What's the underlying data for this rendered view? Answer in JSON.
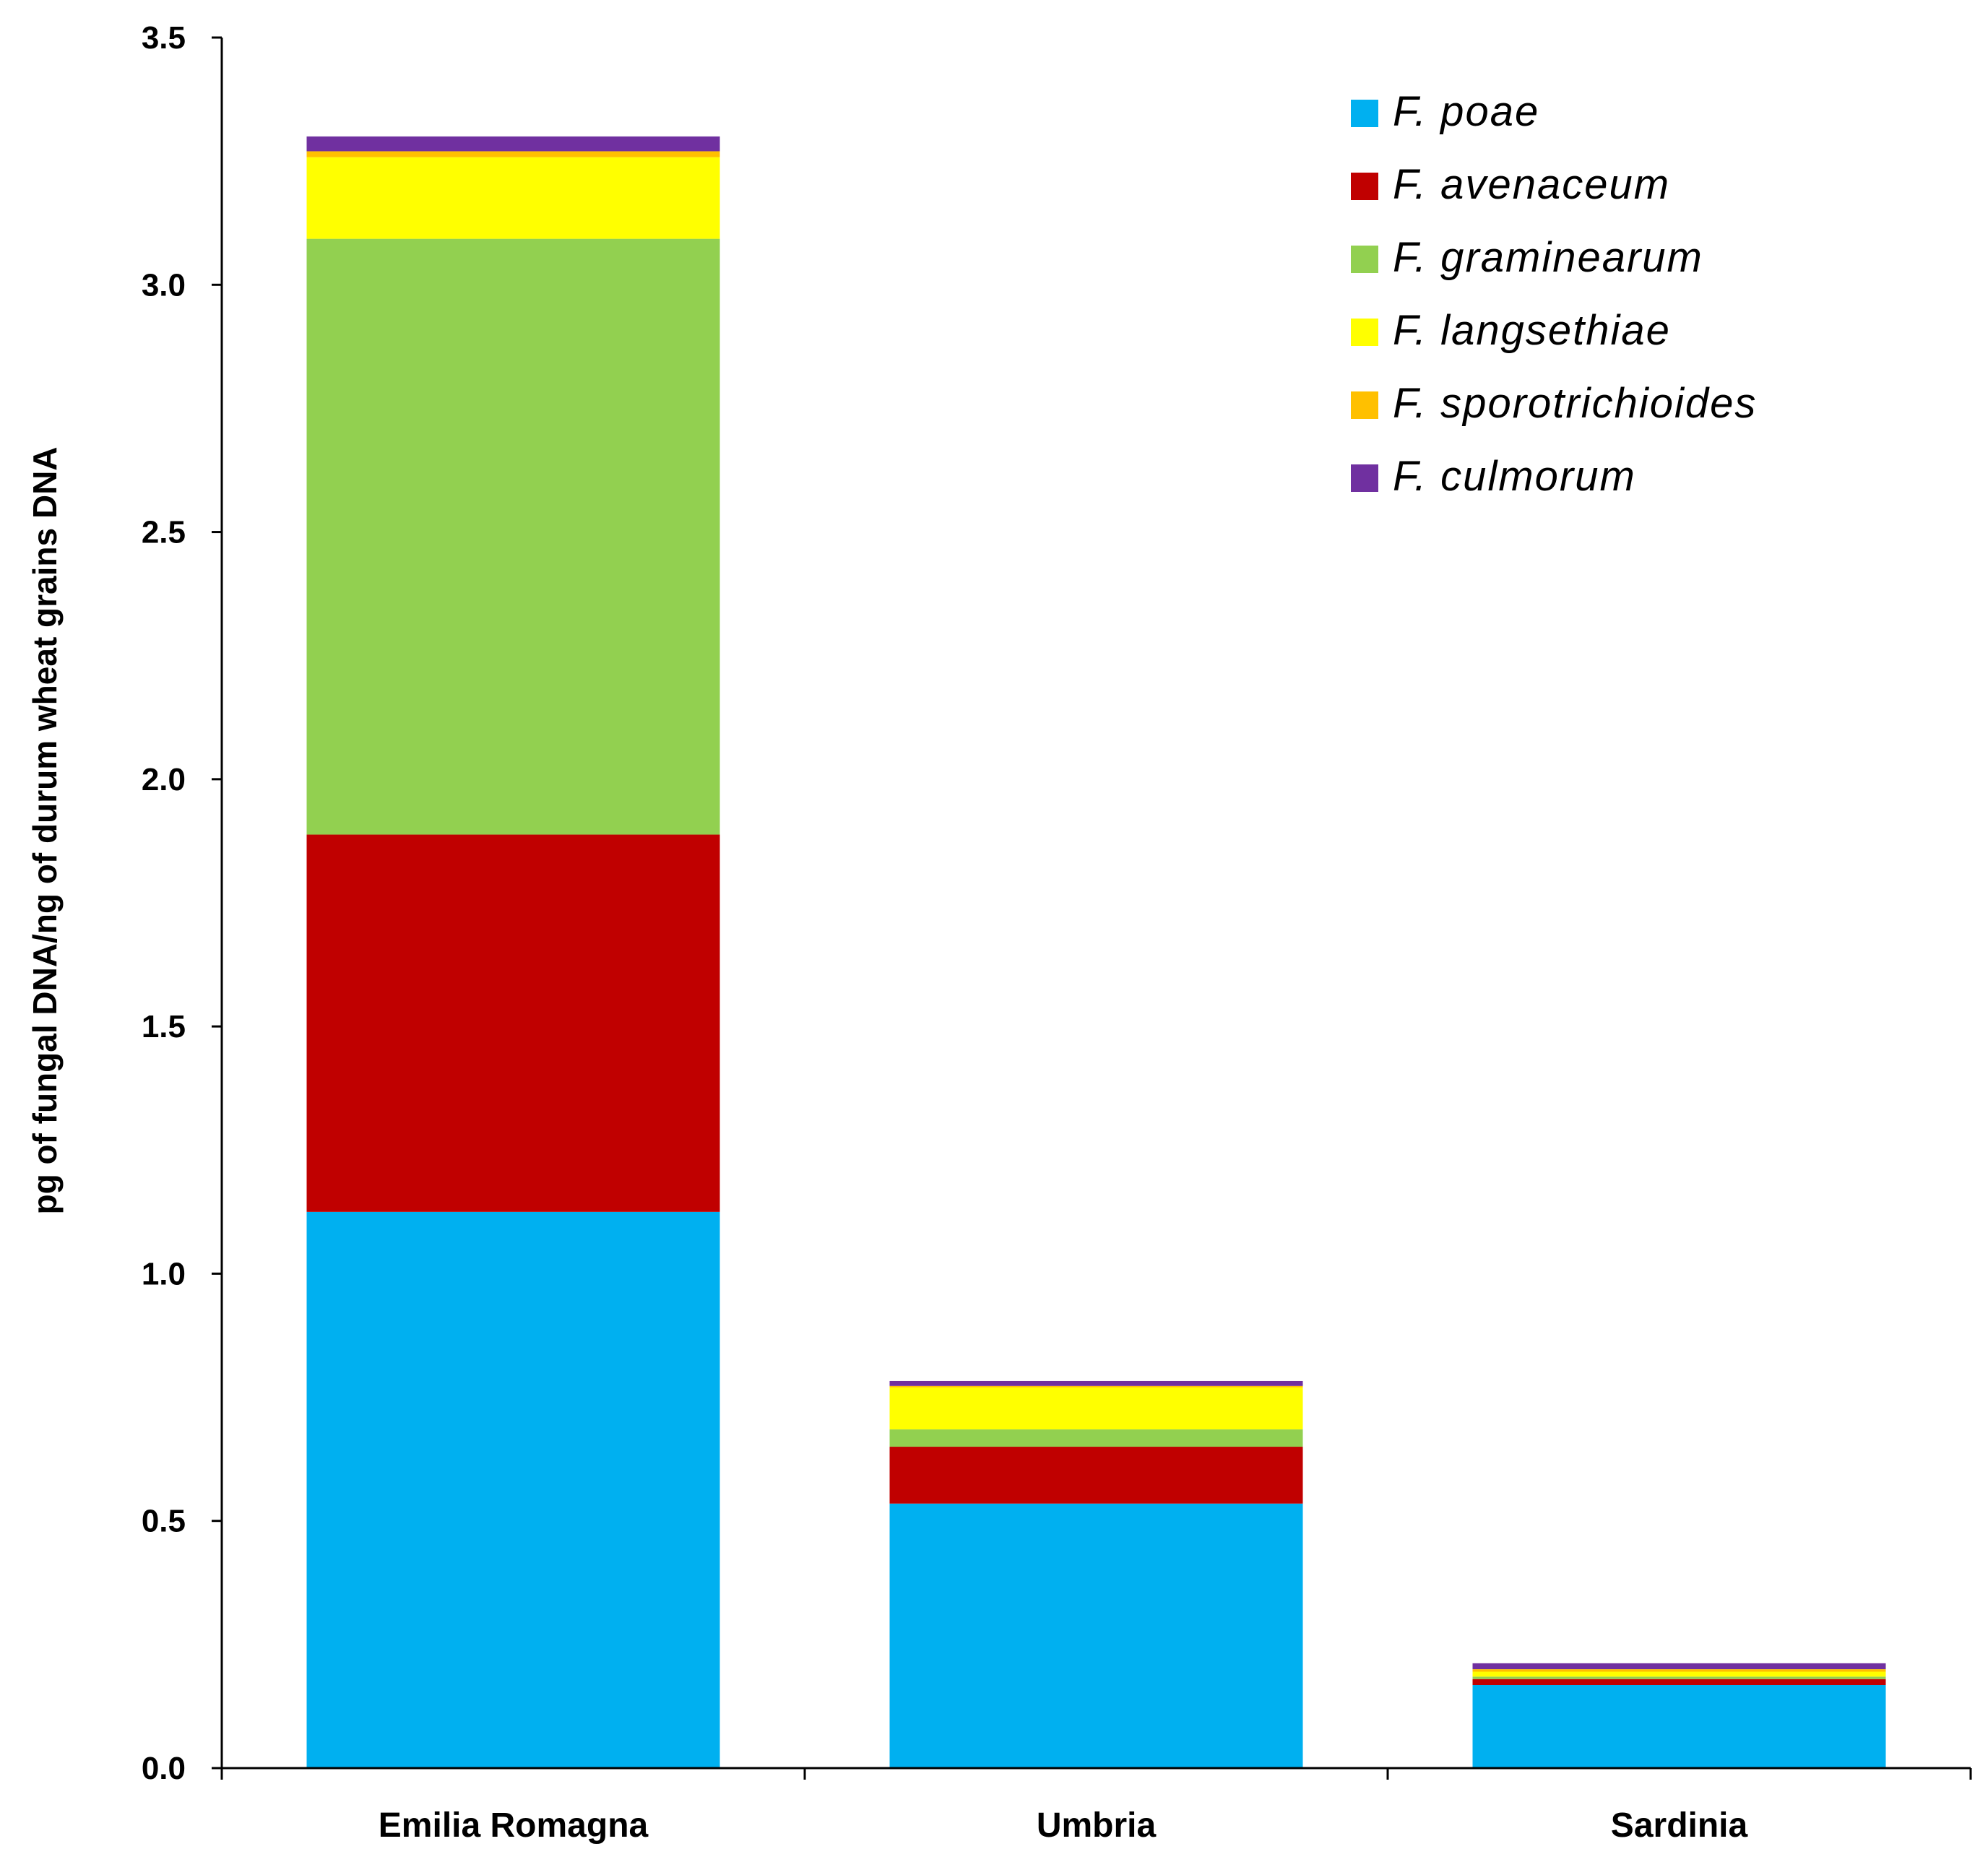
{
  "chart_data": {
    "type": "bar",
    "stacked": true,
    "ylabel": "pg of fungal DNA/ng of durum wheat grains DNA",
    "xlabel": "",
    "title": "",
    "ylim": [
      0,
      3.5
    ],
    "yticks": [
      0.0,
      0.5,
      1.0,
      1.5,
      2.0,
      2.5,
      3.0,
      3.5
    ],
    "ytick_labels": [
      "0.0",
      "0.5",
      "1.0",
      "1.5",
      "2.0",
      "2.5",
      "3.0",
      "3.5"
    ],
    "categories": [
      "Emilia Romagna",
      "Umbria",
      "Sardinia"
    ],
    "legend_position": "top-right",
    "series": [
      {
        "name": "F. poae",
        "color": "#00B0F0",
        "values": [
          1.125,
          0.535,
          0.168
        ]
      },
      {
        "name": "F. avenaceum",
        "color": "#C00000",
        "values": [
          0.763,
          0.115,
          0.012
        ]
      },
      {
        "name": "F. graminearum",
        "color": "#92D050",
        "values": [
          1.205,
          0.035,
          0.005
        ]
      },
      {
        "name": "F. langsethiae",
        "color": "#FFFF00",
        "values": [
          0.165,
          0.085,
          0.01
        ]
      },
      {
        "name": "F. sporotrichioides",
        "color": "#FFC000",
        "values": [
          0.012,
          0.003,
          0.005
        ]
      },
      {
        "name": "F. culmorum",
        "color": "#7030A0",
        "values": [
          0.03,
          0.01,
          0.012
        ]
      }
    ]
  }
}
